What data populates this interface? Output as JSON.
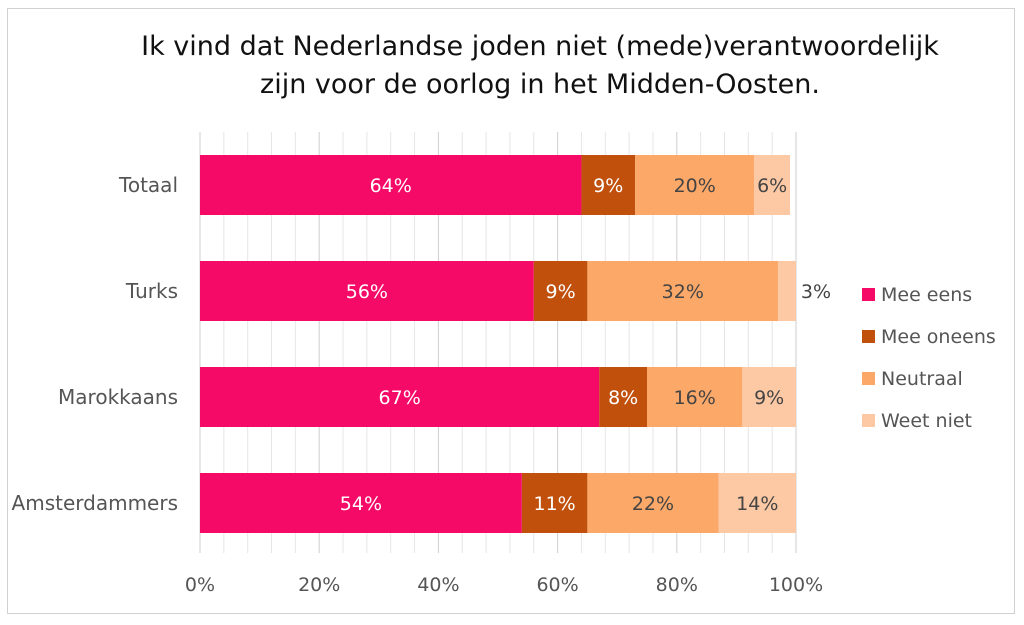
{
  "chart_data": {
    "type": "bar",
    "orientation": "horizontal",
    "stacked": true,
    "title_lines": [
      "Ik vind dat Nederlandse joden niet (mede)verantwoordelijk",
      "zijn voor de oorlog in het Midden-Oosten."
    ],
    "categories": [
      "Totaal",
      "Turks",
      "Marokkaans",
      "Amsterdammers"
    ],
    "series": [
      {
        "name": "Mee eens",
        "color": "#f50a68",
        "label_color": "#ffffff",
        "values": [
          64,
          56,
          67,
          54
        ],
        "labels": [
          "64%",
          "56%",
          "67%",
          "54%"
        ]
      },
      {
        "name": "Mee oneens",
        "color": "#c0500c",
        "label_color": "#ffffff",
        "values": [
          9,
          9,
          8,
          11
        ],
        "labels": [
          "9%",
          "9%",
          "8%",
          "11%"
        ]
      },
      {
        "name": "Neutraal",
        "color": "#fba868",
        "label_color": "#444444",
        "values": [
          20,
          32,
          16,
          22
        ],
        "labels": [
          "20%",
          "32%",
          "16%",
          "22%"
        ]
      },
      {
        "name": "Weet niet",
        "color": "#fdc8a4",
        "label_color": "#444444",
        "values": [
          6,
          3,
          9,
          14
        ],
        "labels": [
          "6%",
          "3%",
          "9%",
          "14%"
        ]
      }
    ],
    "x_ticks": [
      "0%",
      "20%",
      "40%",
      "60%",
      "80%",
      "100%"
    ],
    "xlim": [
      0,
      100
    ],
    "grid": true,
    "legend_position": "right"
  }
}
